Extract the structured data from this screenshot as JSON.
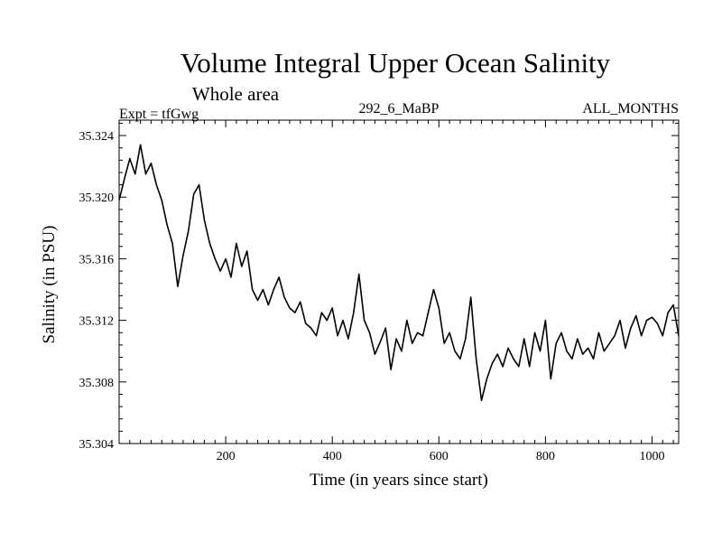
{
  "chart_data": {
    "type": "line",
    "title": "Volume Integral Upper Ocean Salinity",
    "subtitle": "Whole area",
    "experiment_label": "Expt = tfGwg",
    "center_label": "292_6_MaBP",
    "right_label": "ALL_MONTHS",
    "xlabel": "Time (in years since start)",
    "ylabel": "Salinity (in PSU)",
    "xlim": [
      0,
      1050
    ],
    "ylim": [
      35.304,
      35.325
    ],
    "xticks": [
      200,
      400,
      600,
      800,
      1000
    ],
    "xtick_labels": [
      "200",
      "400",
      "600",
      "800",
      "1000"
    ],
    "yticks": [
      35.304,
      35.308,
      35.312,
      35.316,
      35.32,
      35.324
    ],
    "ytick_labels": [
      "35.304",
      "35.308",
      "35.312",
      "35.316",
      "35.320",
      "35.324"
    ],
    "series": [
      {
        "name": "Salinity",
        "color": "#000000",
        "x": [
          0,
          10,
          20,
          30,
          40,
          50,
          60,
          70,
          80,
          90,
          100,
          110,
          120,
          130,
          140,
          150,
          160,
          170,
          180,
          190,
          200,
          210,
          220,
          230,
          240,
          250,
          260,
          270,
          280,
          290,
          300,
          310,
          320,
          330,
          340,
          350,
          360,
          370,
          380,
          390,
          400,
          410,
          420,
          430,
          440,
          450,
          460,
          470,
          480,
          490,
          500,
          510,
          520,
          530,
          540,
          550,
          560,
          570,
          580,
          590,
          600,
          610,
          620,
          630,
          640,
          650,
          660,
          670,
          680,
          690,
          700,
          710,
          720,
          730,
          740,
          750,
          760,
          770,
          780,
          790,
          800,
          810,
          820,
          830,
          840,
          850,
          860,
          870,
          880,
          890,
          900,
          910,
          920,
          930,
          940,
          950,
          960,
          970,
          980,
          990,
          1000,
          1010,
          1020,
          1030,
          1040,
          1050
        ],
        "values": [
          35.3198,
          35.3212,
          35.3225,
          35.3215,
          35.3234,
          35.3215,
          35.3222,
          35.3208,
          35.3198,
          35.3182,
          35.317,
          35.3142,
          35.3162,
          35.3178,
          35.3202,
          35.3208,
          35.3185,
          35.317,
          35.316,
          35.3152,
          35.316,
          35.3148,
          35.317,
          35.3155,
          35.3165,
          35.314,
          35.3133,
          35.314,
          35.313,
          35.314,
          35.3148,
          35.3135,
          35.3128,
          35.3125,
          35.3132,
          35.3118,
          35.3115,
          35.311,
          35.3125,
          35.312,
          35.3128,
          35.311,
          35.312,
          35.3108,
          35.3125,
          35.315,
          35.312,
          35.3112,
          35.3098,
          35.3106,
          35.3115,
          35.3088,
          35.3108,
          35.31,
          35.312,
          35.3105,
          35.3112,
          35.311,
          35.3125,
          35.314,
          35.3128,
          35.3105,
          35.3112,
          35.31,
          35.3095,
          35.3108,
          35.3135,
          35.3095,
          35.3068,
          35.3082,
          35.3092,
          35.3098,
          35.309,
          35.3102,
          35.3095,
          35.309,
          35.3108,
          35.309,
          35.3112,
          35.31,
          35.312,
          35.3082,
          35.3105,
          35.3112,
          35.31,
          35.3095,
          35.3108,
          35.3098,
          35.3102,
          35.3095,
          35.3112,
          35.31,
          35.3105,
          35.311,
          35.312,
          35.3102,
          35.3115,
          35.3123,
          35.311,
          35.312,
          35.3122,
          35.3118,
          35.311,
          35.3125,
          35.313,
          35.311
        ]
      }
    ]
  }
}
